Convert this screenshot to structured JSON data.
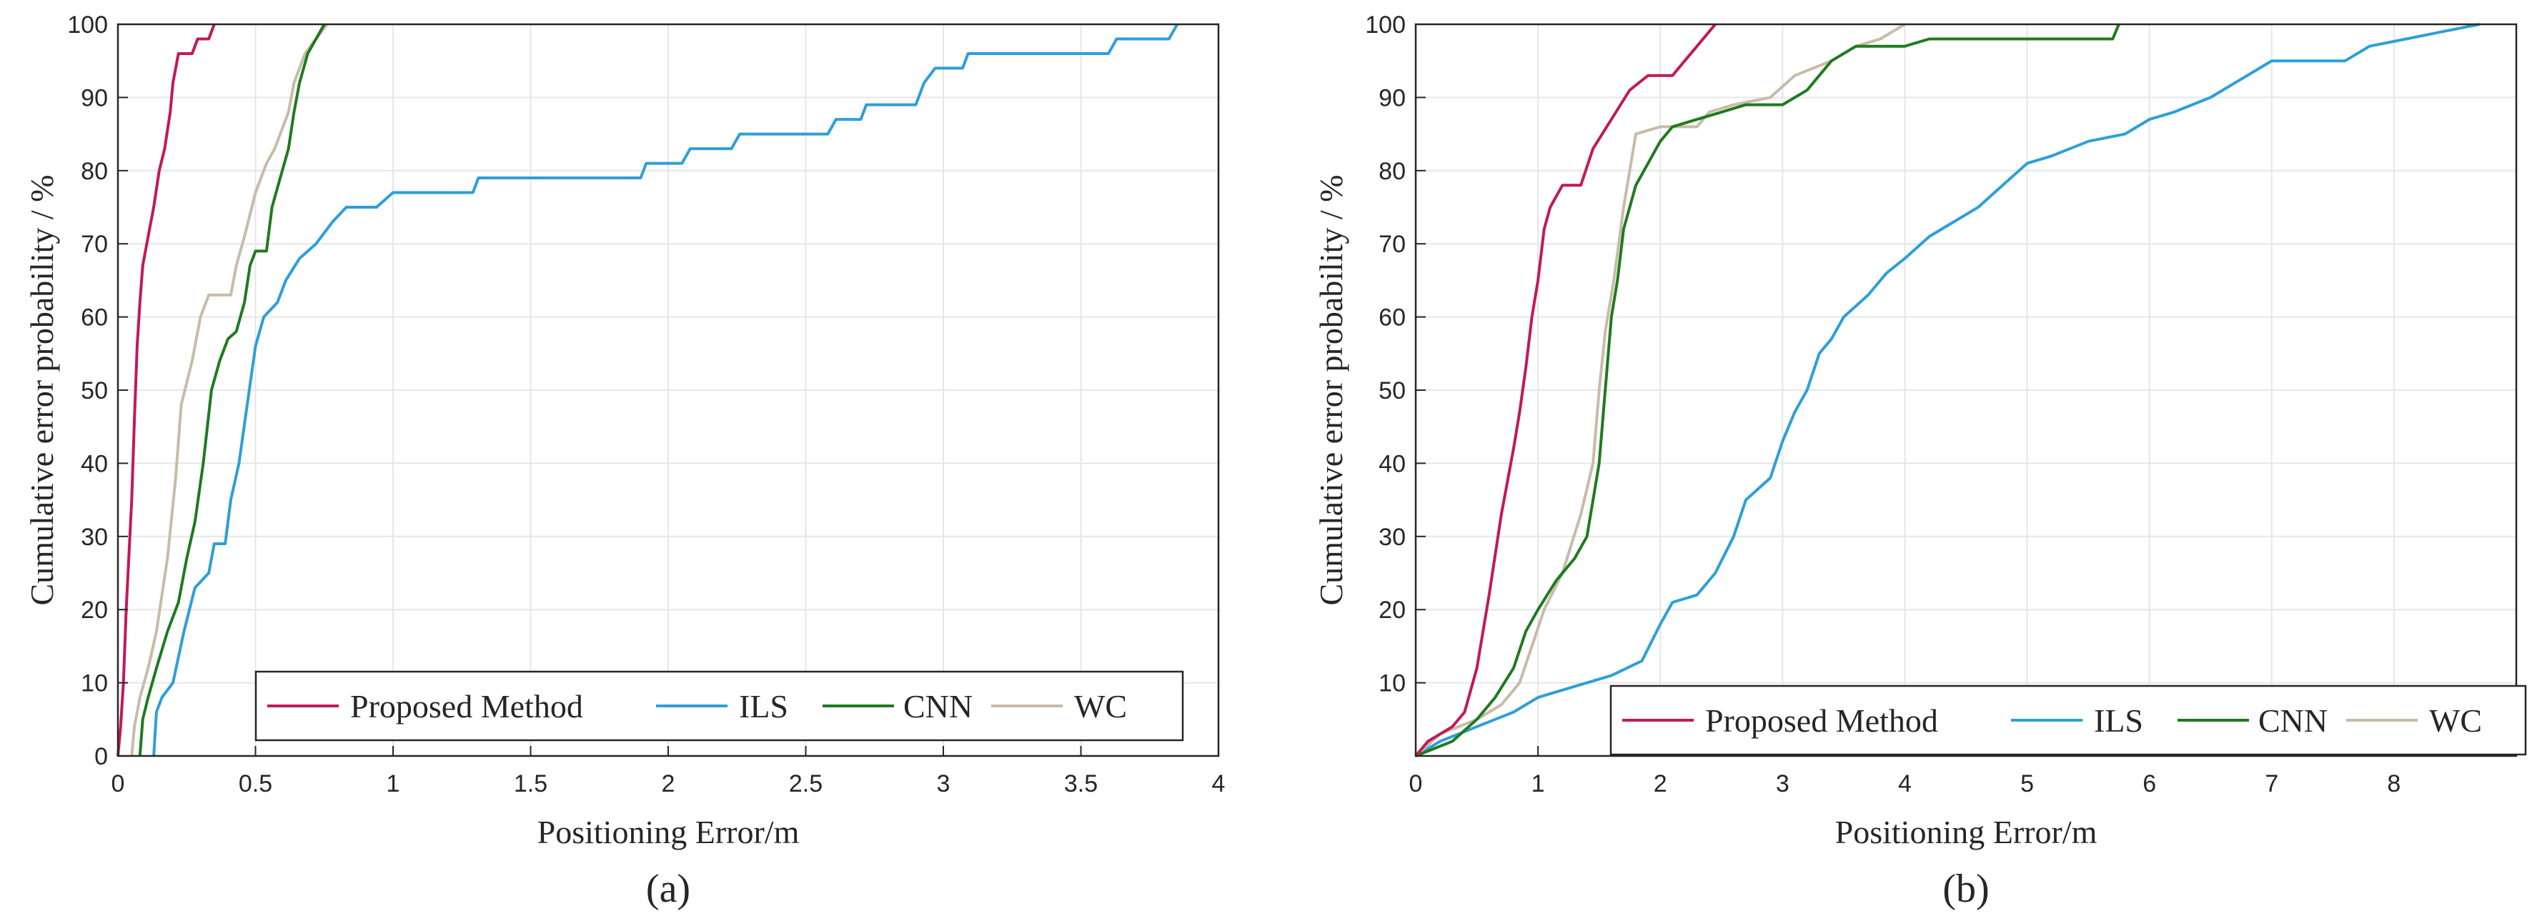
{
  "colors": {
    "proposed": "#C2185B",
    "ils": "#2E9FD8",
    "cnn": "#1F7A1F",
    "wc": "#C8BBA8",
    "grid": "#E6E6E6",
    "axis": "#262626"
  },
  "chart_data": [
    {
      "type": "line",
      "panel_label": "(a)",
      "xlabel": "Positioning Error/m",
      "ylabel": "Cumulative error probability / %",
      "xlim": [
        0,
        4
      ],
      "ylim": [
        0,
        100
      ],
      "xticks": [
        0,
        0.5,
        1,
        1.5,
        2,
        2.5,
        3,
        3.5,
        4
      ],
      "xtick_labels": [
        "0",
        "0.5",
        "1",
        "1.5",
        "2",
        "2.5",
        "3",
        "3.5",
        "4"
      ],
      "yticks": [
        0,
        10,
        20,
        30,
        40,
        50,
        60,
        70,
        80,
        90,
        100
      ],
      "ytick_labels": [
        "0",
        "10",
        "20",
        "30",
        "40",
        "50",
        "60",
        "70",
        "80",
        "90",
        "100"
      ],
      "grid": true,
      "legend_position": "bottom-right",
      "series": [
        {
          "name": "Proposed Method",
          "color_key": "proposed",
          "points": [
            [
              0,
              0
            ],
            [
              0.01,
              4
            ],
            [
              0.02,
              10
            ],
            [
              0.03,
              20
            ],
            [
              0.05,
              35
            ],
            [
              0.06,
              46
            ],
            [
              0.07,
              56
            ],
            [
              0.08,
              62
            ],
            [
              0.09,
              67
            ],
            [
              0.11,
              71
            ],
            [
              0.13,
              75
            ],
            [
              0.15,
              80
            ],
            [
              0.17,
              83
            ],
            [
              0.19,
              88
            ],
            [
              0.2,
              92
            ],
            [
              0.22,
              96
            ],
            [
              0.27,
              96
            ],
            [
              0.29,
              98
            ],
            [
              0.33,
              98
            ],
            [
              0.35,
              100
            ]
          ]
        },
        {
          "name": "ILS",
          "color_key": "ils",
          "points": [
            [
              0.13,
              0
            ],
            [
              0.14,
              6
            ],
            [
              0.16,
              8
            ],
            [
              0.2,
              10
            ],
            [
              0.24,
              17
            ],
            [
              0.28,
              23
            ],
            [
              0.33,
              25
            ],
            [
              0.35,
              29
            ],
            [
              0.39,
              29
            ],
            [
              0.41,
              35
            ],
            [
              0.44,
              40
            ],
            [
              0.47,
              48
            ],
            [
              0.5,
              56
            ],
            [
              0.53,
              60
            ],
            [
              0.58,
              62
            ],
            [
              0.61,
              65
            ],
            [
              0.66,
              68
            ],
            [
              0.72,
              70
            ],
            [
              0.78,
              73
            ],
            [
              0.83,
              75
            ],
            [
              0.94,
              75
            ],
            [
              1.0,
              77
            ],
            [
              1.29,
              77
            ],
            [
              1.31,
              79
            ],
            [
              1.9,
              79
            ],
            [
              1.92,
              81
            ],
            [
              2.05,
              81
            ],
            [
              2.08,
              83
            ],
            [
              2.23,
              83
            ],
            [
              2.26,
              85
            ],
            [
              2.58,
              85
            ],
            [
              2.61,
              87
            ],
            [
              2.7,
              87
            ],
            [
              2.72,
              89
            ],
            [
              2.9,
              89
            ],
            [
              2.93,
              92
            ],
            [
              2.97,
              94
            ],
            [
              3.07,
              94
            ],
            [
              3.09,
              96
            ],
            [
              3.6,
              96
            ],
            [
              3.63,
              98
            ],
            [
              3.82,
              98
            ],
            [
              3.85,
              100
            ]
          ]
        },
        {
          "name": "CNN",
          "color_key": "cnn",
          "points": [
            [
              0.08,
              0
            ],
            [
              0.09,
              5
            ],
            [
              0.11,
              8
            ],
            [
              0.14,
              12
            ],
            [
              0.18,
              17
            ],
            [
              0.22,
              21
            ],
            [
              0.25,
              27
            ],
            [
              0.28,
              32
            ],
            [
              0.31,
              40
            ],
            [
              0.34,
              50
            ],
            [
              0.37,
              54
            ],
            [
              0.4,
              57
            ],
            [
              0.43,
              58
            ],
            [
              0.46,
              62
            ],
            [
              0.48,
              67
            ],
            [
              0.5,
              69
            ],
            [
              0.54,
              69
            ],
            [
              0.56,
              75
            ],
            [
              0.59,
              79
            ],
            [
              0.62,
              83
            ],
            [
              0.64,
              88
            ],
            [
              0.66,
              92
            ],
            [
              0.69,
              96
            ],
            [
              0.72,
              98
            ],
            [
              0.75,
              100
            ]
          ]
        },
        {
          "name": "WC",
          "color_key": "wc",
          "points": [
            [
              0.05,
              0
            ],
            [
              0.06,
              4
            ],
            [
              0.08,
              8
            ],
            [
              0.11,
              12
            ],
            [
              0.14,
              17
            ],
            [
              0.18,
              27
            ],
            [
              0.21,
              38
            ],
            [
              0.23,
              48
            ],
            [
              0.27,
              54
            ],
            [
              0.3,
              60
            ],
            [
              0.33,
              63
            ],
            [
              0.41,
              63
            ],
            [
              0.43,
              67
            ],
            [
              0.46,
              71
            ],
            [
              0.5,
              77
            ],
            [
              0.54,
              81
            ],
            [
              0.57,
              83
            ],
            [
              0.62,
              88
            ],
            [
              0.64,
              92
            ],
            [
              0.68,
              96
            ],
            [
              0.72,
              98
            ],
            [
              0.76,
              100
            ]
          ]
        }
      ]
    },
    {
      "type": "line",
      "panel_label": "(b)",
      "xlabel": "Positioning Error/m",
      "ylabel": "Cumulative error probability / %",
      "xlim": [
        0,
        9
      ],
      "ylim": [
        0,
        100
      ],
      "xticks": [
        0,
        1,
        2,
        3,
        4,
        5,
        6,
        7,
        8,
        9
      ],
      "xtick_labels": [
        "0",
        "1",
        "2",
        "3",
        "4",
        "5",
        "6",
        "7",
        "8",
        ""
      ],
      "yticks": [
        0,
        10,
        20,
        30,
        40,
        50,
        60,
        70,
        80,
        90,
        100
      ],
      "ytick_labels": [
        "",
        "10",
        "20",
        "30",
        "40",
        "50",
        "60",
        "70",
        "80",
        "90",
        "100"
      ],
      "grid": true,
      "legend_position": "bottom-right",
      "series": [
        {
          "name": "Proposed Method",
          "color_key": "proposed",
          "points": [
            [
              0,
              0
            ],
            [
              0.1,
              2
            ],
            [
              0.2,
              3
            ],
            [
              0.3,
              4
            ],
            [
              0.4,
              6
            ],
            [
              0.5,
              12
            ],
            [
              0.6,
              22
            ],
            [
              0.7,
              33
            ],
            [
              0.8,
              42
            ],
            [
              0.85,
              47
            ],
            [
              0.9,
              53
            ],
            [
              0.95,
              60
            ],
            [
              1.0,
              65
            ],
            [
              1.05,
              72
            ],
            [
              1.1,
              75
            ],
            [
              1.2,
              78
            ],
            [
              1.35,
              78
            ],
            [
              1.45,
              83
            ],
            [
              1.6,
              87
            ],
            [
              1.75,
              91
            ],
            [
              1.9,
              93
            ],
            [
              2.1,
              93
            ],
            [
              2.2,
              95
            ],
            [
              2.3,
              97
            ],
            [
              2.4,
              99
            ],
            [
              2.45,
              100
            ]
          ]
        },
        {
          "name": "ILS",
          "color_key": "ils",
          "points": [
            [
              0,
              0
            ],
            [
              0.2,
              2
            ],
            [
              0.35,
              3
            ],
            [
              0.5,
              4
            ],
            [
              0.65,
              5
            ],
            [
              0.8,
              6
            ],
            [
              1.0,
              8
            ],
            [
              1.2,
              9
            ],
            [
              1.4,
              10
            ],
            [
              1.6,
              11
            ],
            [
              1.85,
              13
            ],
            [
              2.0,
              18
            ],
            [
              2.1,
              21
            ],
            [
              2.3,
              22
            ],
            [
              2.45,
              25
            ],
            [
              2.6,
              30
            ],
            [
              2.7,
              35
            ],
            [
              2.9,
              38
            ],
            [
              3.0,
              43
            ],
            [
              3.1,
              47
            ],
            [
              3.2,
              50
            ],
            [
              3.3,
              55
            ],
            [
              3.4,
              57
            ],
            [
              3.5,
              60
            ],
            [
              3.7,
              63
            ],
            [
              3.85,
              66
            ],
            [
              4.0,
              68
            ],
            [
              4.2,
              71
            ],
            [
              4.4,
              73
            ],
            [
              4.6,
              75
            ],
            [
              4.8,
              78
            ],
            [
              5.0,
              81
            ],
            [
              5.2,
              82
            ],
            [
              5.5,
              84
            ],
            [
              5.8,
              85
            ],
            [
              6.0,
              87
            ],
            [
              6.2,
              88
            ],
            [
              6.5,
              90
            ],
            [
              6.8,
              93
            ],
            [
              7.0,
              95
            ],
            [
              7.6,
              95
            ],
            [
              7.8,
              97
            ],
            [
              8.1,
              98
            ],
            [
              8.4,
              99
            ],
            [
              8.7,
              100
            ]
          ]
        },
        {
          "name": "CNN",
          "color_key": "cnn",
          "points": [
            [
              0,
              0
            ],
            [
              0.3,
              2
            ],
            [
              0.5,
              5
            ],
            [
              0.65,
              8
            ],
            [
              0.8,
              12
            ],
            [
              0.9,
              17
            ],
            [
              1.0,
              20
            ],
            [
              1.15,
              24
            ],
            [
              1.3,
              27
            ],
            [
              1.4,
              30
            ],
            [
              1.5,
              40
            ],
            [
              1.55,
              50
            ],
            [
              1.6,
              60
            ],
            [
              1.65,
              65
            ],
            [
              1.7,
              72
            ],
            [
              1.8,
              78
            ],
            [
              1.9,
              81
            ],
            [
              2.0,
              84
            ],
            [
              2.1,
              86
            ],
            [
              2.3,
              87
            ],
            [
              2.5,
              88
            ],
            [
              2.7,
              89
            ],
            [
              3.0,
              89
            ],
            [
              3.2,
              91
            ],
            [
              3.4,
              95
            ],
            [
              3.6,
              97
            ],
            [
              4.0,
              97
            ],
            [
              4.2,
              98
            ],
            [
              5.7,
              98
            ],
            [
              5.75,
              100
            ]
          ]
        },
        {
          "name": "WC",
          "color_key": "wc",
          "points": [
            [
              0,
              0
            ],
            [
              0.2,
              3
            ],
            [
              0.5,
              5
            ],
            [
              0.7,
              7
            ],
            [
              0.85,
              10
            ],
            [
              0.95,
              15
            ],
            [
              1.05,
              20
            ],
            [
              1.2,
              25
            ],
            [
              1.35,
              33
            ],
            [
              1.45,
              40
            ],
            [
              1.5,
              50
            ],
            [
              1.55,
              58
            ],
            [
              1.62,
              65
            ],
            [
              1.7,
              75
            ],
            [
              1.8,
              85
            ],
            [
              2.0,
              86
            ],
            [
              2.3,
              86
            ],
            [
              2.4,
              88
            ],
            [
              2.6,
              89
            ],
            [
              2.9,
              90
            ],
            [
              3.1,
              93
            ],
            [
              3.4,
              95
            ],
            [
              3.6,
              97
            ],
            [
              3.8,
              98
            ],
            [
              4.0,
              100
            ]
          ]
        }
      ]
    }
  ]
}
